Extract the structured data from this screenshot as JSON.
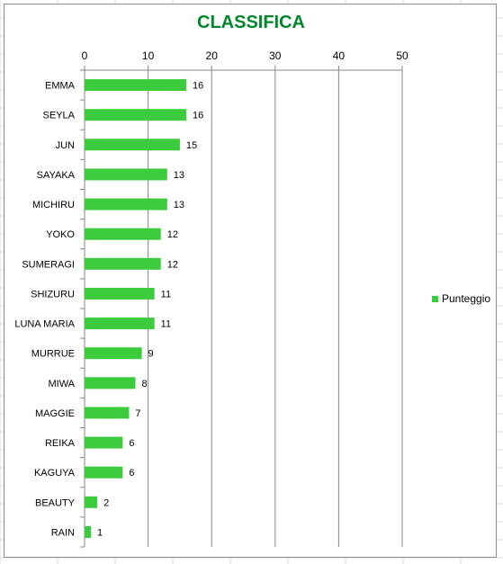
{
  "chart_data": {
    "type": "bar",
    "orientation": "horizontal",
    "title": "CLASSIFICA",
    "xlabel": "",
    "ylabel": "",
    "categories": [
      "EMMA",
      "SEYLA",
      "JUN",
      "SAYAKA",
      "MICHIRU",
      "YOKO",
      "SUMERAGI",
      "SHIZURU",
      "LUNA MARIA",
      "MURRUE",
      "MIWA",
      "MAGGIE",
      "REIKA",
      "KAGUYA",
      "BEAUTY",
      "RAIN"
    ],
    "series": [
      {
        "name": "Punteggio",
        "values": [
          16,
          16,
          15,
          13,
          13,
          12,
          12,
          11,
          11,
          9,
          8,
          7,
          6,
          6,
          2,
          1
        ],
        "color": "#3ccb3c"
      }
    ],
    "xlim": [
      0,
      50
    ],
    "xticks": [
      0,
      10,
      20,
      30,
      40,
      50
    ],
    "x_axis_position": "top",
    "grid": true,
    "legend_position": "right",
    "data_labels": true,
    "title_color": "#00862b"
  }
}
